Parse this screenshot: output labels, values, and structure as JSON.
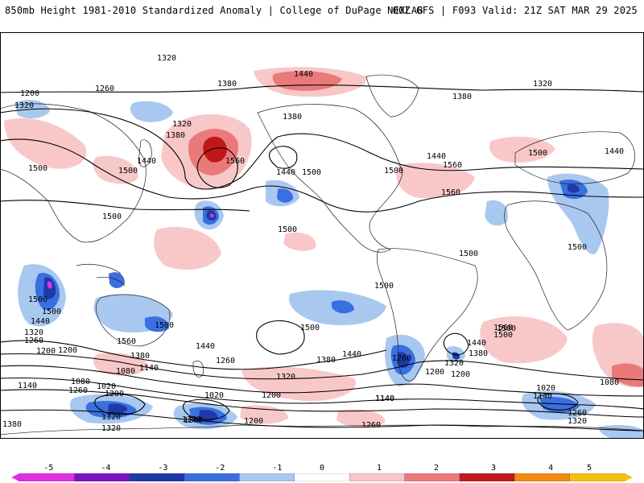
{
  "header": {
    "title": "850mb Height 1981-2010 Standardized Anomaly | College of DuPage NEXLAB",
    "run_info": "00Z GFS | F093 Valid: 21Z SAT MAR 29 2025"
  },
  "colorbar": {
    "ticks": [
      "-5",
      "-4",
      "-3",
      "-2",
      "-1",
      "0",
      "1",
      "2",
      "3",
      "4",
      "5"
    ],
    "colors": [
      "#e030e0",
      "#7a16c0",
      "#1e3aa8",
      "#3a6fe0",
      "#a8c8f0",
      "#ffffff",
      "#f8c8c8",
      "#ea7a7a",
      "#c01818",
      "#f08a10",
      "#f5c010"
    ]
  },
  "contour_labels": [
    {
      "text": "1320"
    },
    {
      "text": "1440"
    },
    {
      "text": "1380"
    },
    {
      "text": "1320"
    },
    {
      "text": "1260"
    },
    {
      "text": "1200"
    },
    {
      "text": "1320"
    },
    {
      "text": "1380"
    },
    {
      "text": "1380"
    },
    {
      "text": "1320"
    },
    {
      "text": "1380"
    },
    {
      "text": "1500"
    },
    {
      "text": "1500"
    },
    {
      "text": "1560"
    },
    {
      "text": "1440"
    },
    {
      "text": "1440"
    },
    {
      "text": "1500"
    },
    {
      "text": "1440"
    },
    {
      "text": "1500"
    },
    {
      "text": "1560"
    },
    {
      "text": "1560"
    },
    {
      "text": "1500"
    },
    {
      "text": "1440"
    },
    {
      "text": "1500"
    },
    {
      "text": "1500"
    },
    {
      "text": "1500"
    },
    {
      "text": "1500"
    },
    {
      "text": "1500"
    },
    {
      "text": "1500"
    },
    {
      "text": "1500"
    },
    {
      "text": "1500"
    },
    {
      "text": "1500"
    },
    {
      "text": "1440"
    },
    {
      "text": "1320"
    },
    {
      "text": "1260"
    },
    {
      "text": "1200"
    },
    {
      "text": "1560"
    },
    {
      "text": "1380"
    },
    {
      "text": "1440"
    },
    {
      "text": "1500"
    },
    {
      "text": "1440"
    },
    {
      "text": "1380"
    },
    {
      "text": "1320"
    },
    {
      "text": "1260"
    },
    {
      "text": "1200"
    },
    {
      "text": "1080"
    },
    {
      "text": "1140"
    },
    {
      "text": "1080"
    },
    {
      "text": "1020"
    },
    {
      "text": "1200"
    },
    {
      "text": "1140"
    },
    {
      "text": "1260"
    },
    {
      "text": "1020"
    },
    {
      "text": "1200"
    },
    {
      "text": "1260"
    },
    {
      "text": "1320"
    },
    {
      "text": "1380"
    },
    {
      "text": "1320"
    },
    {
      "text": "1140"
    },
    {
      "text": "1200"
    },
    {
      "text": "1200"
    },
    {
      "text": "1260"
    },
    {
      "text": "1380"
    },
    {
      "text": "1320"
    },
    {
      "text": "1440"
    },
    {
      "text": "1500"
    },
    {
      "text": "1560"
    },
    {
      "text": "1020"
    },
    {
      "text": "1080"
    },
    {
      "text": "1140"
    },
    {
      "text": "1260"
    },
    {
      "text": "1320"
    },
    {
      "text": "1200"
    },
    {
      "text": "1140"
    },
    {
      "text": "1260"
    },
    {
      "text": "1320"
    }
  ]
}
